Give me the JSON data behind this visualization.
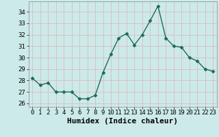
{
  "x": [
    0,
    1,
    2,
    3,
    4,
    5,
    6,
    7,
    8,
    9,
    10,
    11,
    12,
    13,
    14,
    15,
    16,
    17,
    18,
    19,
    20,
    21,
    22,
    23
  ],
  "y": [
    28.2,
    27.6,
    27.8,
    27.0,
    27.0,
    27.0,
    26.4,
    26.4,
    26.7,
    28.7,
    30.3,
    31.7,
    32.1,
    31.1,
    32.0,
    33.2,
    34.5,
    31.7,
    31.0,
    30.9,
    30.0,
    29.7,
    29.0,
    28.8
  ],
  "line_color": "#1a6b5a",
  "marker": "D",
  "markersize": 2.5,
  "linewidth": 1.0,
  "bg_color": "#cceaea",
  "grid_color": "#bbdddd",
  "xlabel": "Humidex (Indice chaleur)",
  "xlabel_fontsize": 8,
  "ylabel_ticks": [
    26,
    27,
    28,
    29,
    30,
    31,
    32,
    33,
    34
  ],
  "xlim": [
    -0.5,
    23.5
  ],
  "ylim": [
    25.7,
    34.9
  ],
  "tick_fontsize": 6.5,
  "xtick_labels": [
    "0",
    "1",
    "2",
    "3",
    "4",
    "5",
    "6",
    "7",
    "8",
    "9",
    "10",
    "11",
    "12",
    "13",
    "14",
    "15",
    "16",
    "17",
    "18",
    "19",
    "20",
    "21",
    "22",
    "23"
  ]
}
